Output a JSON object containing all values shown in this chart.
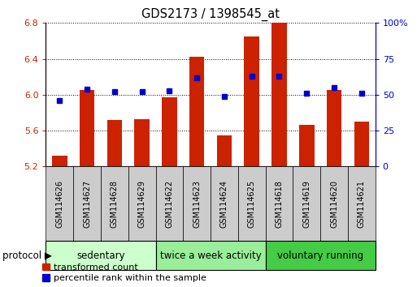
{
  "title": "GDS2173 / 1398545_at",
  "samples": [
    "GSM114626",
    "GSM114627",
    "GSM114628",
    "GSM114629",
    "GSM114622",
    "GSM114623",
    "GSM114624",
    "GSM114625",
    "GSM114618",
    "GSM114619",
    "GSM114620",
    "GSM114621"
  ],
  "transformed_count": [
    5.32,
    6.05,
    5.72,
    5.73,
    5.97,
    6.42,
    5.55,
    6.65,
    6.8,
    5.66,
    6.05,
    5.7
  ],
  "percentile_rank": [
    46,
    54,
    52,
    52,
    53,
    62,
    49,
    63,
    63,
    51,
    55,
    51
  ],
  "groups": [
    {
      "label": "sedentary",
      "start": 0,
      "end": 4,
      "color": "#ccffcc"
    },
    {
      "label": "twice a week activity",
      "start": 4,
      "end": 8,
      "color": "#99ee99"
    },
    {
      "label": "voluntary running",
      "start": 8,
      "end": 12,
      "color": "#44cc44"
    }
  ],
  "ylim_left": [
    5.2,
    6.8
  ],
  "ylim_right": [
    0,
    100
  ],
  "yticks_left": [
    5.2,
    5.6,
    6.0,
    6.4,
    6.8
  ],
  "yticks_right": [
    0,
    25,
    50,
    75,
    100
  ],
  "bar_color": "#cc2200",
  "dot_color": "#0000cc",
  "bar_width": 0.55,
  "sample_box_color": "#cccccc",
  "legend_bar_label": "transformed count",
  "legend_dot_label": "percentile rank within the sample",
  "protocol_label": "protocol"
}
